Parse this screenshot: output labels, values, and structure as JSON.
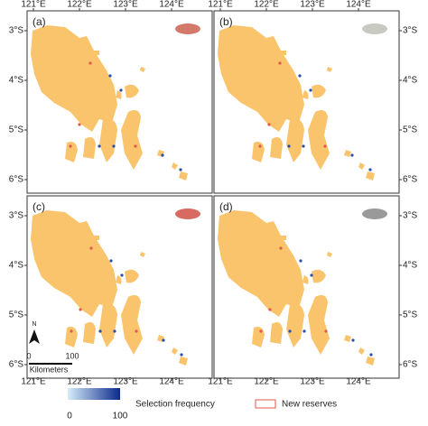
{
  "panels": [
    {
      "label": "(a)"
    },
    {
      "label": "(b)"
    },
    {
      "label": "(c)"
    },
    {
      "label": "(d)"
    }
  ],
  "x_ticks": [
    "121°E",
    "122°E",
    "123°E",
    "124°E"
  ],
  "y_ticks": [
    "3°S",
    "4°S",
    "5°S",
    "6°S"
  ],
  "scale_bar": {
    "north": "N",
    "start": 0,
    "end": 100,
    "unit": "Kilometers"
  },
  "legend": {
    "colorbar_min": 0,
    "colorbar_max": 100,
    "colorbar_title": "Selection frequency",
    "reserves": "New reserves"
  }
}
